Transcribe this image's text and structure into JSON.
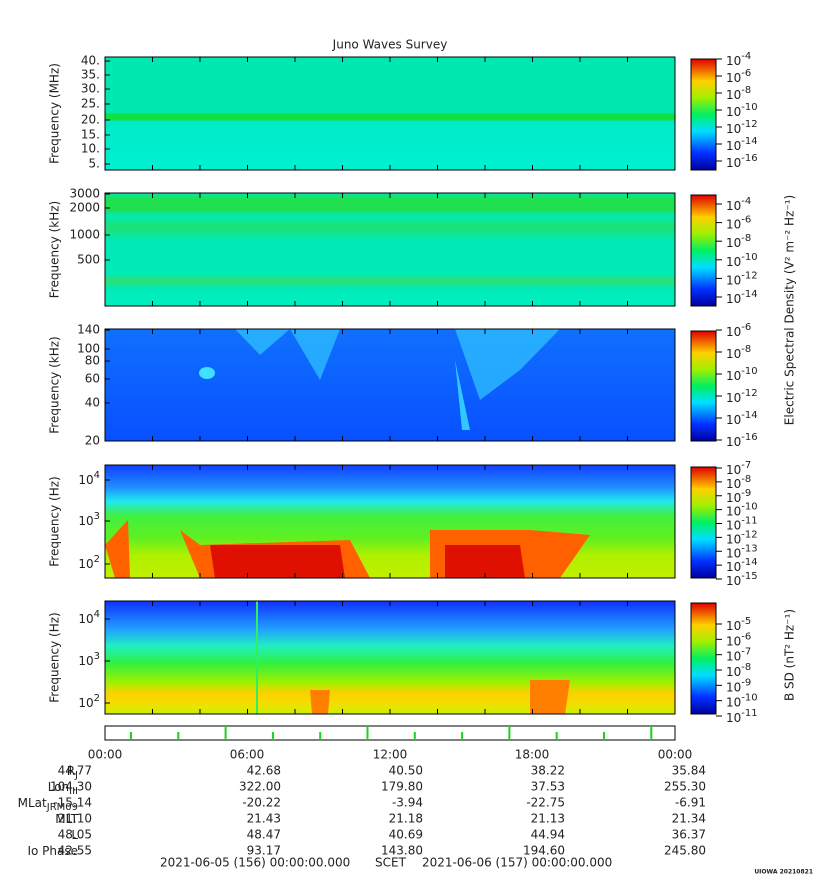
{
  "title": "Juno Waves Survey",
  "panels": [
    {
      "ylabel": "Frequency (MHz)",
      "yticks": [
        "40.",
        "35.",
        "30.",
        "25.",
        "20.",
        "15.",
        "10.",
        "5."
      ],
      "cbar_ticks": [
        {
          "base": "10",
          "exp": "-4"
        },
        {
          "base": "10",
          "exp": "-6"
        },
        {
          "base": "10",
          "exp": "-8"
        },
        {
          "base": "10",
          "exp": "-10"
        },
        {
          "base": "10",
          "exp": "-12"
        },
        {
          "base": "10",
          "exp": "-14"
        },
        {
          "base": "10",
          "exp": "-16"
        }
      ]
    },
    {
      "ylabel": "Frequency (kHz)",
      "yticks": [
        "3000",
        "2000",
        "1000",
        "500"
      ],
      "cbar_ticks": [
        {
          "base": "10",
          "exp": "-4"
        },
        {
          "base": "10",
          "exp": "-6"
        },
        {
          "base": "10",
          "exp": "-8"
        },
        {
          "base": "10",
          "exp": "-10"
        },
        {
          "base": "10",
          "exp": "-12"
        },
        {
          "base": "10",
          "exp": "-14"
        }
      ]
    },
    {
      "ylabel": "Frequency (kHz)",
      "yticks": [
        "140",
        "100",
        "80",
        "60",
        "40",
        "20"
      ],
      "cbar_ticks": [
        {
          "base": "10",
          "exp": "-6"
        },
        {
          "base": "10",
          "exp": "-8"
        },
        {
          "base": "10",
          "exp": "-10"
        },
        {
          "base": "10",
          "exp": "-12"
        },
        {
          "base": "10",
          "exp": "-14"
        },
        {
          "base": "10",
          "exp": "-16"
        }
      ]
    },
    {
      "ylabel": "Frequency (Hz)",
      "yticks": [
        {
          "base": "10",
          "exp": "4"
        },
        {
          "base": "10",
          "exp": "3"
        },
        {
          "base": "10",
          "exp": "2"
        }
      ],
      "cbar_ticks": [
        {
          "base": "10",
          "exp": "-7"
        },
        {
          "base": "10",
          "exp": "-8"
        },
        {
          "base": "10",
          "exp": "-9"
        },
        {
          "base": "10",
          "exp": "-10"
        },
        {
          "base": "10",
          "exp": "-11"
        },
        {
          "base": "10",
          "exp": "-12"
        },
        {
          "base": "10",
          "exp": "-13"
        },
        {
          "base": "10",
          "exp": "-14"
        },
        {
          "base": "10",
          "exp": "-15"
        }
      ]
    },
    {
      "ylabel": "Frequency (Hz)",
      "yticks": [
        {
          "base": "10",
          "exp": "4"
        },
        {
          "base": "10",
          "exp": "3"
        },
        {
          "base": "10",
          "exp": "2"
        }
      ],
      "cbar_ticks": [
        {
          "base": "10",
          "exp": "-5"
        },
        {
          "base": "10",
          "exp": "-6"
        },
        {
          "base": "10",
          "exp": "-7"
        },
        {
          "base": "10",
          "exp": "-8"
        },
        {
          "base": "10",
          "exp": "-9"
        },
        {
          "base": "10",
          "exp": "-10"
        },
        {
          "base": "10",
          "exp": "-11"
        }
      ]
    }
  ],
  "cbar_label_electric": "Electric Spectral Density (V² m⁻² Hz⁻¹)",
  "cbar_label_magnetic": "B SD (nT² Hz⁻¹)",
  "ephemeris": {
    "times": [
      "00:00",
      "06:00",
      "12:00",
      "18:00",
      "00:00"
    ],
    "rows": [
      {
        "label": "R",
        "sub": "J",
        "values": [
          "44.77",
          "42.68",
          "40.50",
          "38.22",
          "35.84"
        ]
      },
      {
        "label": "Lon",
        "sub": "III",
        "values": [
          "104.30",
          "322.00",
          "179.80",
          "37.53",
          "255.30"
        ]
      },
      {
        "label": "MLat",
        "sub": "JRM09",
        "values": [
          "-15.14",
          "-20.22",
          "-3.94",
          "-22.75",
          "-6.91"
        ]
      },
      {
        "label": "MLT",
        "values": [
          "21.10",
          "21.43",
          "21.18",
          "21.13",
          "21.34"
        ]
      },
      {
        "label": "L",
        "values": [
          "48.05",
          "48.47",
          "40.69",
          "44.94",
          "36.37"
        ]
      },
      {
        "label": "Io Phase",
        "values": [
          "42.55",
          "93.17",
          "143.80",
          "194.60",
          "245.80"
        ]
      }
    ]
  },
  "footer": {
    "start": "2021-06-05 (156) 00:00:00.000",
    "scet": "SCET",
    "end": "2021-06-06 (157) 00:00:00.000"
  },
  "stamp": "UIOWA 20210821"
}
